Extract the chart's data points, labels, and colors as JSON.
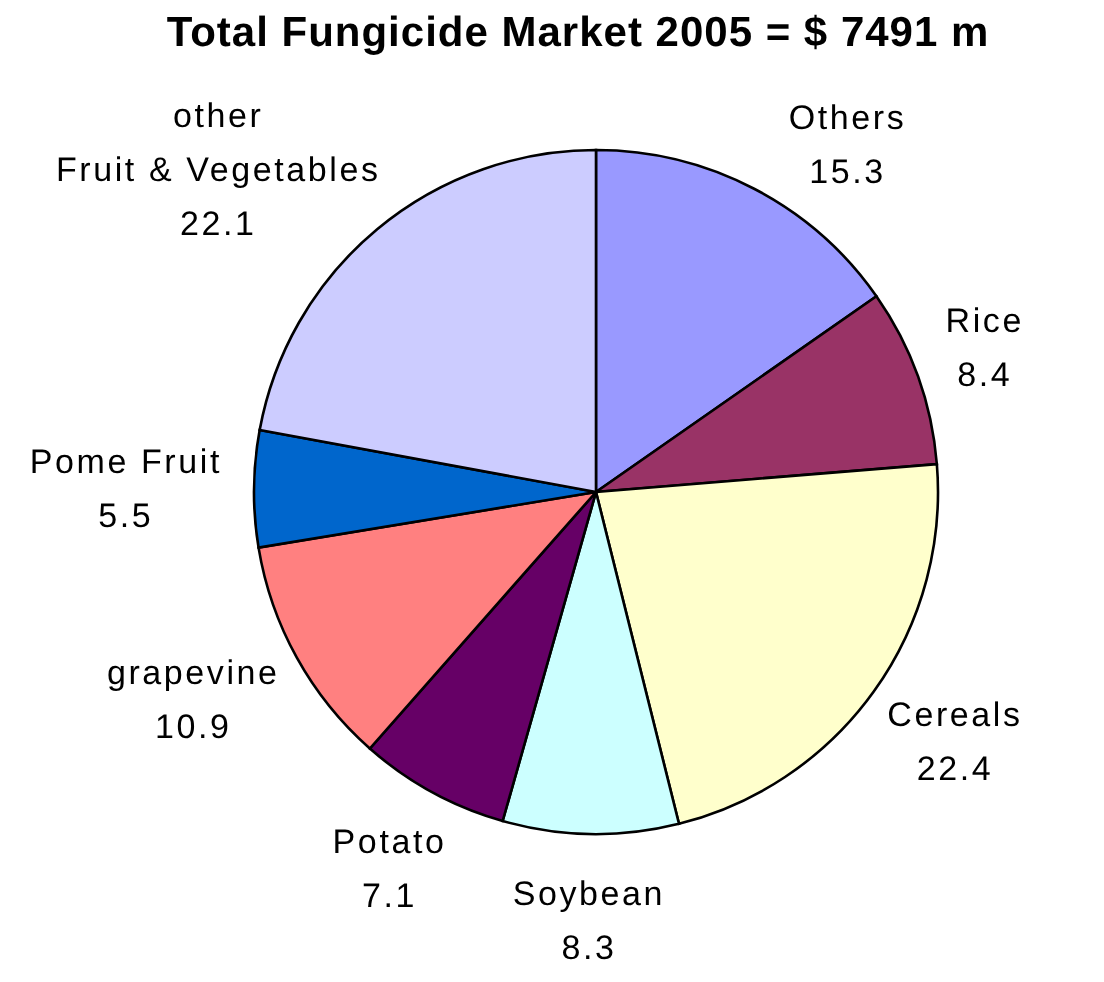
{
  "chart_data": {
    "type": "pie",
    "title": "Total Fungicide Market 2005 = $ 7491 m",
    "categories": [
      "Others",
      "Rice",
      "Cereals",
      "Soybean",
      "Potato",
      "grapevine",
      "Pome Fruit",
      "other\nFruit & Vegetables"
    ],
    "values": [
      15.3,
      8.4,
      22.4,
      8.3,
      7.1,
      10.9,
      5.5,
      22.1
    ],
    "colors": [
      "#9999ff",
      "#993366",
      "#ffffcc",
      "#ccffff",
      "#660066",
      "#ff8080",
      "#0066cc",
      "#ccccff"
    ],
    "data_labels": true,
    "legend": false
  }
}
